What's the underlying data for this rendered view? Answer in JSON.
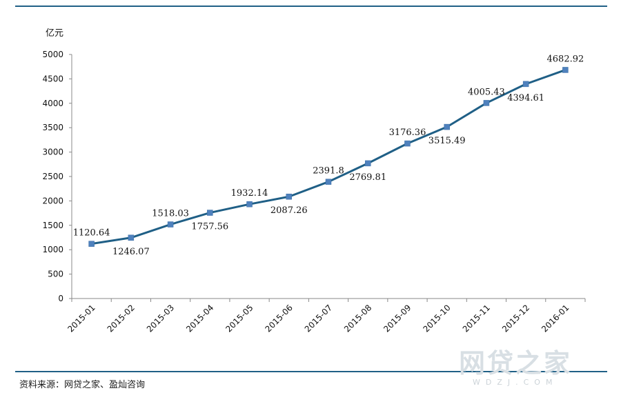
{
  "chart_data": {
    "type": "line",
    "unit_label": "亿元",
    "categories": [
      "2015-01",
      "2015-02",
      "2015-03",
      "2015-04",
      "2015-05",
      "2015-06",
      "2015-07",
      "2015-08",
      "2015-09",
      "2015-10",
      "2015-11",
      "2015-12",
      "2016-01"
    ],
    "series": [
      {
        "values": [
          1120.64,
          1246.07,
          1518.03,
          1757.56,
          1932.14,
          2087.26,
          2391.8,
          2769.81,
          3176.36,
          3515.49,
          4005.43,
          4394.61,
          4682.92
        ],
        "data_labels": [
          "1120.64",
          "1246.07",
          "1518.03",
          "1757.56",
          "1932.14",
          "2087.26",
          "2391.8",
          "2769.81",
          "3176.36",
          "3515.49",
          "4005.43",
          "4394.61",
          "4682.92"
        ],
        "label_positions": [
          "above",
          "below",
          "above",
          "below",
          "above",
          "below",
          "above",
          "below",
          "above",
          "below",
          "above",
          "below",
          "above"
        ],
        "color": "#1f5f86",
        "marker_color": "#4f81bd"
      }
    ],
    "ylim": [
      0,
      5000
    ],
    "yticks": [
      "0",
      "500",
      "1000",
      "1500",
      "2000",
      "2500",
      "3000",
      "3500",
      "4000",
      "4500",
      "5000"
    ],
    "grid": false,
    "legend": "none"
  },
  "source_text": "资料来源：网贷之家、盈灿咨询",
  "watermark": {
    "main": "网贷之家",
    "sub": "WDZJ.COM"
  }
}
